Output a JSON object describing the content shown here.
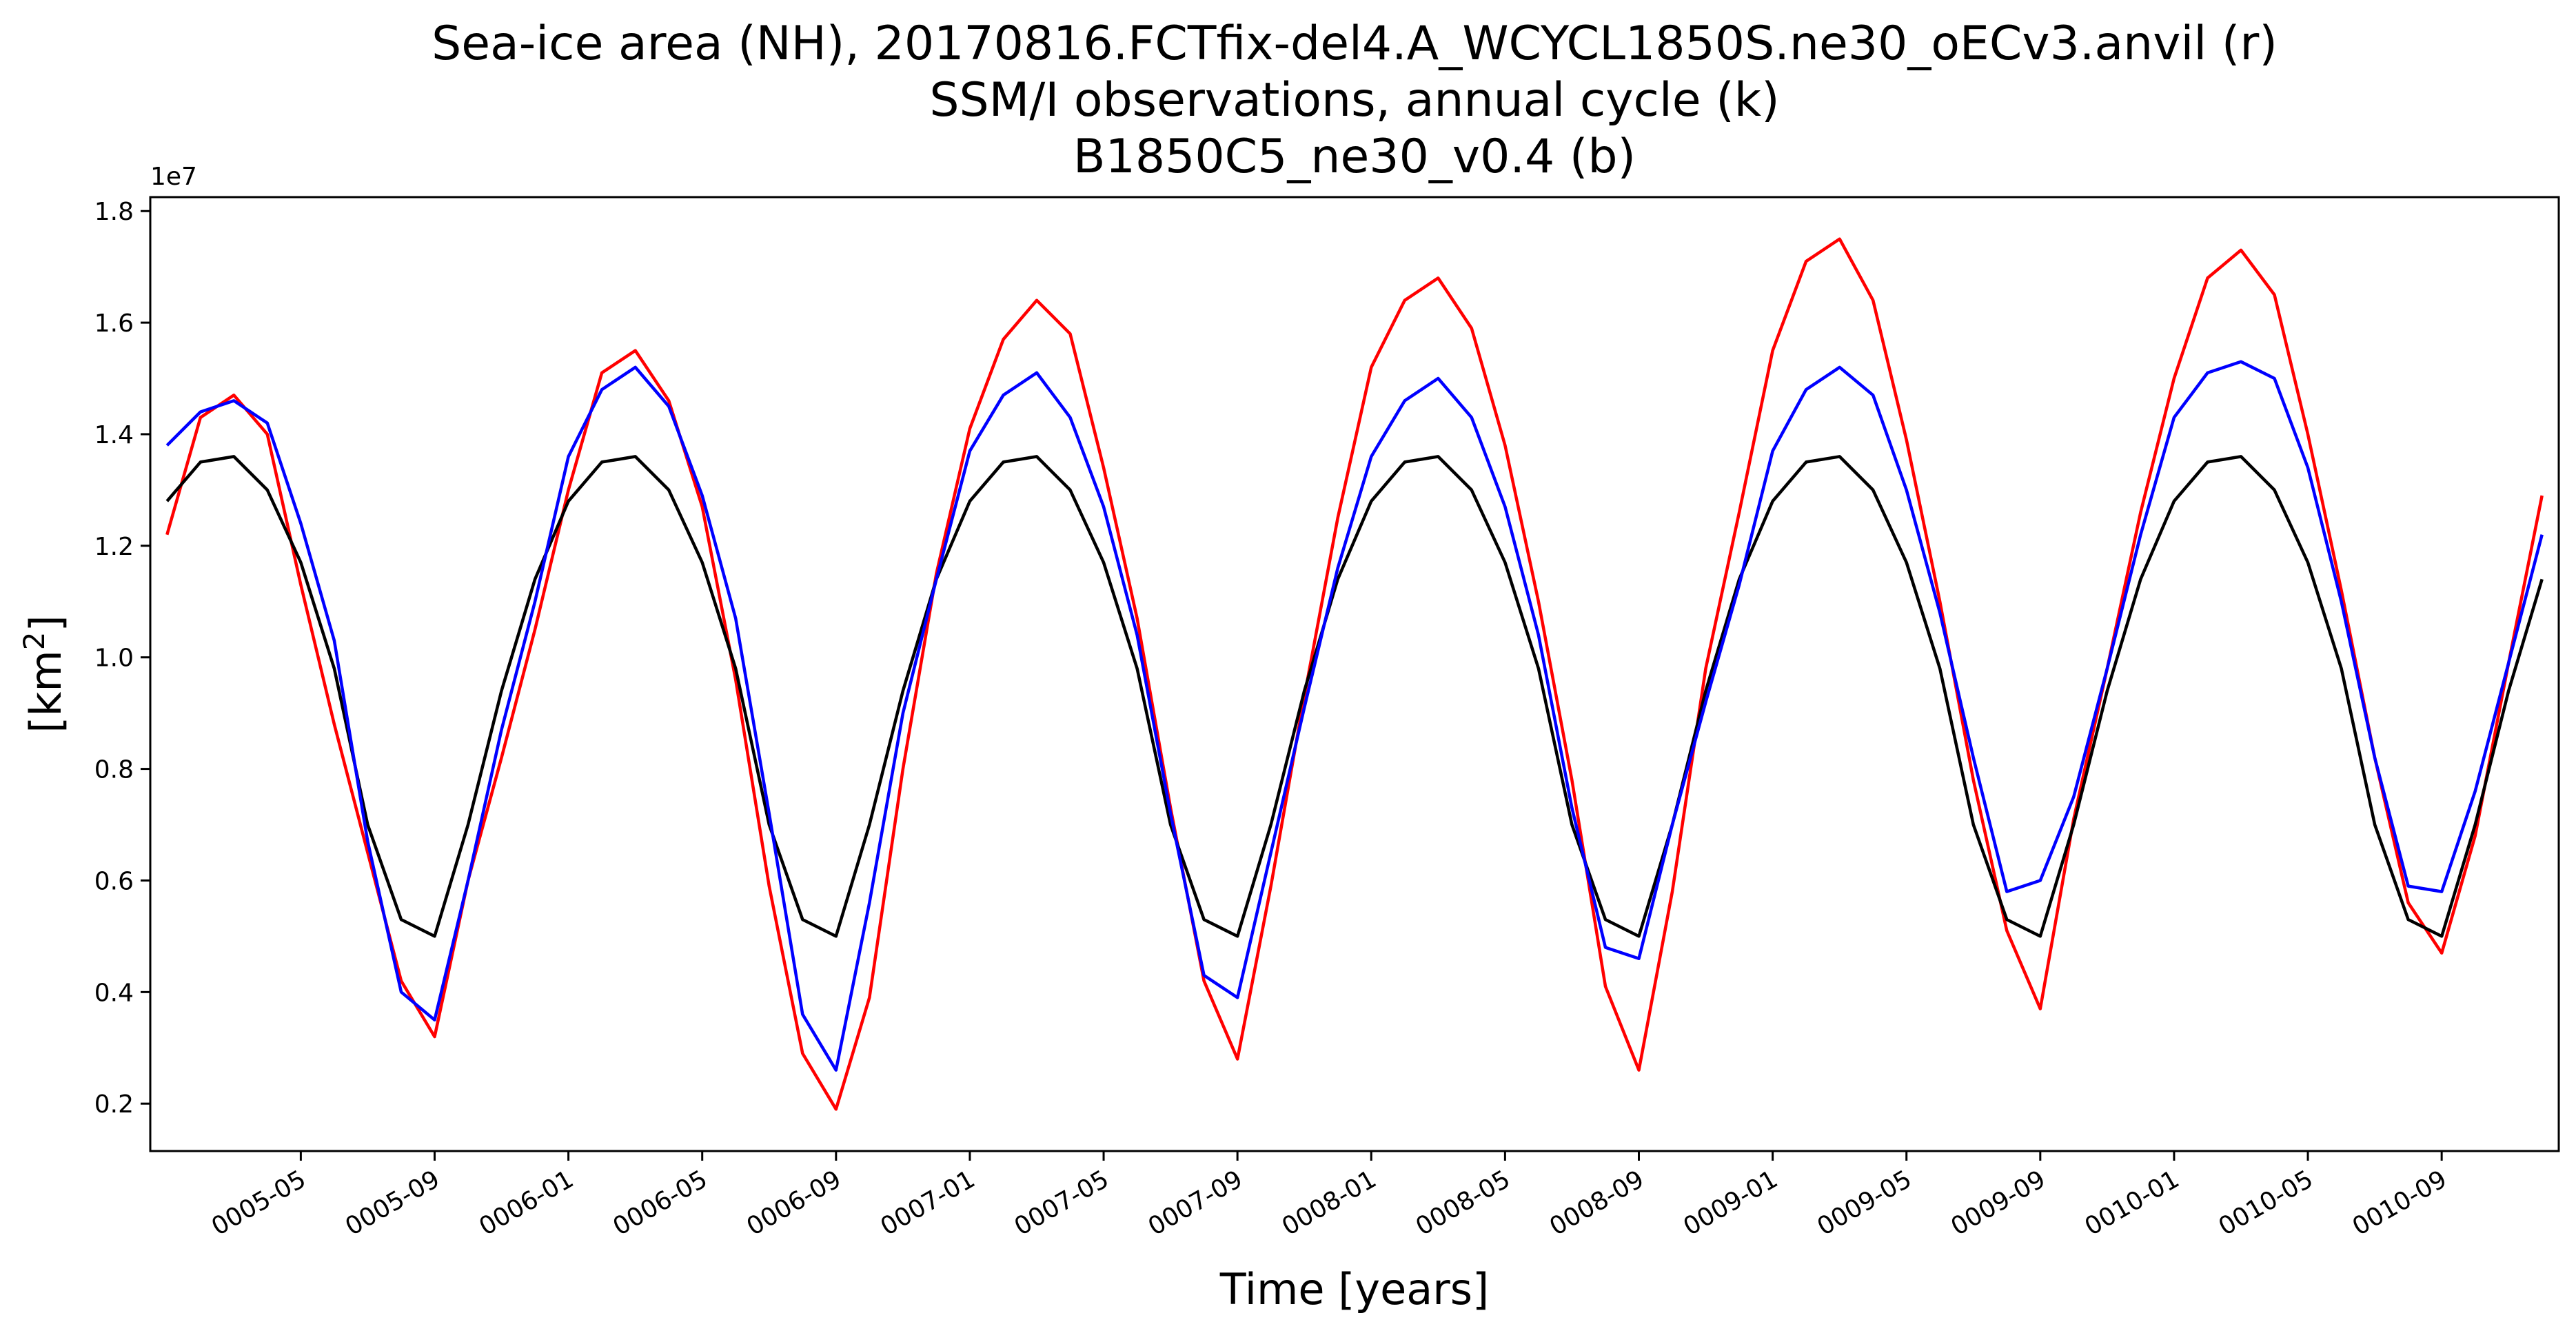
{
  "chart_data": {
    "type": "line",
    "title_lines": [
      "Sea-ice area (NH), 20170816.FCTfix-del4.A_WCYCL1850S.ne30_oECv3.anvil (r)",
      "SSM/I observations, annual cycle (k)",
      "B1850C5_ne30_v0.4 (b)"
    ],
    "xlabel": "Time [years]",
    "ylabel": "[km",
    "ylabel_sup": "2",
    "ylabel_close": "]",
    "y_offset_label": "1e7",
    "x_tick_labels": [
      "0005-05",
      "0005-09",
      "0006-01",
      "0006-05",
      "0006-09",
      "0007-01",
      "0007-05",
      "0007-09",
      "0008-01",
      "0008-05",
      "0008-09",
      "0009-01",
      "0009-05",
      "0009-09",
      "0010-01",
      "0010-05",
      "0010-09"
    ],
    "x_tick_dates": [
      "0005-05",
      "0005-09",
      "0006-01",
      "0006-05",
      "0006-09",
      "0007-01",
      "0007-05",
      "0007-09",
      "0008-01",
      "0008-05",
      "0008-09",
      "0009-01",
      "0009-05",
      "0009-09",
      "0010-01",
      "0010-05",
      "0010-09"
    ],
    "x_start": "0005-01",
    "x_end": "0010-12",
    "y_tick_values": [
      0.2,
      0.4,
      0.6,
      0.8,
      1.0,
      1.2,
      1.4,
      1.6,
      1.8
    ],
    "y_tick_labels": [
      "0.2",
      "0.4",
      "0.6",
      "0.8",
      "1.0",
      "1.2",
      "1.4",
      "1.6",
      "1.8"
    ],
    "ylim": [
      0.115,
      1.825
    ],
    "grid": false,
    "series": [
      {
        "color": "#ff0000",
        "values": [
          1.22,
          1.43,
          1.47,
          1.4,
          1.13,
          0.88,
          0.65,
          0.42,
          0.32,
          0.6,
          0.82,
          1.05,
          1.3,
          1.51,
          1.55,
          1.46,
          1.27,
          0.96,
          0.59,
          0.29,
          0.19,
          0.39,
          0.8,
          1.15,
          1.41,
          1.57,
          1.64,
          1.58,
          1.34,
          1.07,
          0.73,
          0.42,
          0.28,
          0.59,
          0.93,
          1.25,
          1.52,
          1.64,
          1.68,
          1.59,
          1.38,
          1.1,
          0.78,
          0.41,
          0.26,
          0.58,
          0.98,
          1.26,
          1.55,
          1.71,
          1.75,
          1.64,
          1.39,
          1.1,
          0.78,
          0.51,
          0.37,
          0.71,
          0.98,
          1.26,
          1.5,
          1.68,
          1.73,
          1.65,
          1.4,
          1.12,
          0.82,
          0.56,
          0.47,
          0.68,
          0.99,
          1.29
        ]
      },
      {
        "color": "#000000",
        "values": [
          1.28,
          1.35,
          1.36,
          1.3,
          1.17,
          0.98,
          0.7,
          0.53,
          0.5,
          0.7,
          0.94,
          1.14,
          1.28,
          1.35,
          1.36,
          1.3,
          1.17,
          0.98,
          0.7,
          0.53,
          0.5,
          0.7,
          0.94,
          1.14,
          1.28,
          1.35,
          1.36,
          1.3,
          1.17,
          0.98,
          0.7,
          0.53,
          0.5,
          0.7,
          0.94,
          1.14,
          1.28,
          1.35,
          1.36,
          1.3,
          1.17,
          0.98,
          0.7,
          0.53,
          0.5,
          0.7,
          0.94,
          1.14,
          1.28,
          1.35,
          1.36,
          1.3,
          1.17,
          0.98,
          0.7,
          0.53,
          0.5,
          0.7,
          0.94,
          1.14,
          1.28,
          1.35,
          1.36,
          1.3,
          1.17,
          0.98,
          0.7,
          0.53,
          0.5,
          0.7,
          0.94,
          1.14
        ]
      },
      {
        "color": "#0000ff",
        "values": [
          1.38,
          1.44,
          1.46,
          1.42,
          1.24,
          1.03,
          0.67,
          0.4,
          0.35,
          0.6,
          0.87,
          1.1,
          1.36,
          1.48,
          1.52,
          1.45,
          1.29,
          1.07,
          0.72,
          0.36,
          0.26,
          0.56,
          0.9,
          1.14,
          1.37,
          1.47,
          1.51,
          1.43,
          1.27,
          1.04,
          0.72,
          0.43,
          0.39,
          0.65,
          0.91,
          1.16,
          1.36,
          1.46,
          1.5,
          1.43,
          1.27,
          1.04,
          0.73,
          0.48,
          0.46,
          0.7,
          0.92,
          1.13,
          1.37,
          1.48,
          1.52,
          1.47,
          1.3,
          1.08,
          0.82,
          0.58,
          0.6,
          0.75,
          0.98,
          1.22,
          1.43,
          1.51,
          1.53,
          1.5,
          1.34,
          1.1,
          0.82,
          0.59,
          0.58,
          0.76,
          0.99,
          1.22
        ]
      }
    ]
  }
}
